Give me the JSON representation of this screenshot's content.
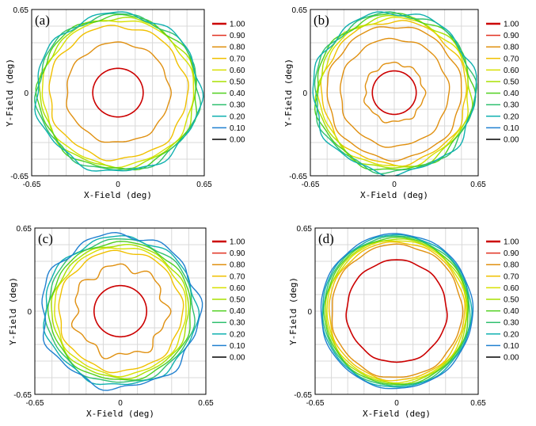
{
  "chart_data": [
    {
      "type": "contour",
      "panel_label": "(a)",
      "xlabel": "X-Field (deg)",
      "ylabel": "Y-Field (deg)",
      "xlim": [
        -0.65,
        0.65
      ],
      "ylim": [
        -0.65,
        0.65
      ],
      "x_ticks": [
        "-0.65",
        "0",
        "0.65"
      ],
      "y_ticks": [
        "0.65",
        "0",
        "-0.65"
      ],
      "grid": true,
      "legend": [
        "1.00",
        "0.90",
        "0.80",
        "0.70",
        "0.60",
        "0.50",
        "0.40",
        "0.30",
        "0.20",
        "0.10",
        "0.00"
      ],
      "contours": [
        {
          "level": "1.00",
          "radius": 0.19,
          "wobble": 0.0
        },
        {
          "level": "0.80",
          "radius": 0.39,
          "wobble": 0.008
        },
        {
          "level": "0.70",
          "radius": 0.52,
          "wobble": 0.012
        },
        {
          "level": "0.60",
          "radius": 0.57,
          "wobble": 0.01
        },
        {
          "level": "0.50",
          "radius": 0.585,
          "wobble": 0.012
        },
        {
          "level": "0.40",
          "radius": 0.6,
          "wobble": 0.014
        },
        {
          "level": "0.30",
          "radius": 0.61,
          "wobble": 0.015
        },
        {
          "level": "0.20",
          "radius": 0.62,
          "wobble": 0.016
        }
      ]
    },
    {
      "type": "contour",
      "panel_label": "(b)",
      "xlabel": "X-Field (deg)",
      "ylabel": "Y-Field (deg)",
      "xlim": [
        -0.65,
        0.65
      ],
      "ylim": [
        -0.65,
        0.65
      ],
      "x_ticks": [
        "-0.65",
        "0",
        "0.65"
      ],
      "y_ticks": [
        "0.65",
        "0",
        "-0.65"
      ],
      "grid": true,
      "legend": [
        "1.00",
        "0.90",
        "0.80",
        "0.70",
        "0.60",
        "0.50",
        "0.40",
        "0.30",
        "0.20",
        "0.10",
        "0.00"
      ],
      "contours": [
        {
          "level": "1.00",
          "radius": 0.17,
          "wobble": 0.0
        },
        {
          "level": "0.80",
          "radius": 0.23,
          "wobble": 0.01
        },
        {
          "level": "0.80",
          "radius": 0.42,
          "wobble": 0.008
        },
        {
          "level": "0.80",
          "radius": 0.52,
          "wobble": 0.01
        },
        {
          "level": "0.70",
          "radius": 0.56,
          "wobble": 0.012
        },
        {
          "level": "0.60",
          "radius": 0.58,
          "wobble": 0.012
        },
        {
          "level": "0.50",
          "radius": 0.595,
          "wobble": 0.014
        },
        {
          "level": "0.40",
          "radius": 0.61,
          "wobble": 0.015
        },
        {
          "level": "0.30",
          "radius": 0.62,
          "wobble": 0.016
        },
        {
          "level": "0.20",
          "radius": 0.63,
          "wobble": 0.017
        }
      ]
    },
    {
      "type": "contour",
      "panel_label": "(c)",
      "xlabel": "X-Field (deg)",
      "ylabel": "Y-Field (deg)",
      "xlim": [
        -0.65,
        0.65
      ],
      "ylim": [
        -0.65,
        0.65
      ],
      "x_ticks": [
        "-0.65",
        "0",
        "0.65"
      ],
      "y_ticks": [
        "0.65",
        "0",
        "-0.65"
      ],
      "grid": true,
      "legend": [
        "1.00",
        "0.90",
        "0.80",
        "0.70",
        "0.60",
        "0.50",
        "0.40",
        "0.30",
        "0.20",
        "0.10",
        "0.00"
      ],
      "contours": [
        {
          "level": "1.00",
          "radius": 0.2,
          "wobble": 0.0
        },
        {
          "level": "0.80",
          "radius": 0.35,
          "wobble": 0.025
        },
        {
          "level": "0.70",
          "radius": 0.47,
          "wobble": 0.01
        },
        {
          "level": "0.60",
          "radius": 0.5,
          "wobble": 0.008
        },
        {
          "level": "0.50",
          "radius": 0.52,
          "wobble": 0.008
        },
        {
          "level": "0.40",
          "radius": 0.54,
          "wobble": 0.008
        },
        {
          "level": "0.30",
          "radius": 0.56,
          "wobble": 0.01
        },
        {
          "level": "0.20",
          "radius": 0.58,
          "wobble": 0.014
        },
        {
          "level": "0.10",
          "radius": 0.6,
          "wobble": 0.02
        }
      ]
    },
    {
      "type": "contour",
      "panel_label": "(d)",
      "xlabel": "X-Field (deg)",
      "ylabel": "Y-Field (deg)",
      "xlim": [
        -0.65,
        0.65
      ],
      "ylim": [
        -0.65,
        0.65
      ],
      "x_ticks": [
        "-0.65",
        "0",
        "0.65"
      ],
      "y_ticks": [
        "0.65",
        "0",
        "-0.65"
      ],
      "grid": true,
      "legend": [
        "1.00",
        "0.90",
        "0.80",
        "0.70",
        "0.60",
        "0.50",
        "0.40",
        "0.30",
        "0.20",
        "0.10",
        "0.00"
      ],
      "contours": [
        {
          "level": "1.00",
          "radius": 0.4,
          "wobble": 0.004
        },
        {
          "level": "0.80",
          "radius": 0.52,
          "wobble": 0.006
        },
        {
          "level": "0.70",
          "radius": 0.54,
          "wobble": 0.005
        },
        {
          "level": "0.60",
          "radius": 0.555,
          "wobble": 0.004
        },
        {
          "level": "0.50",
          "radius": 0.565,
          "wobble": 0.004
        },
        {
          "level": "0.40",
          "radius": 0.575,
          "wobble": 0.004
        },
        {
          "level": "0.30",
          "radius": 0.585,
          "wobble": 0.004
        },
        {
          "level": "0.20",
          "radius": 0.595,
          "wobble": 0.004
        },
        {
          "level": "0.10",
          "radius": 0.605,
          "wobble": 0.004
        }
      ]
    }
  ],
  "level_colors": {
    "1.00": "#cc0000",
    "0.90": "#e03020",
    "0.80": "#e09010",
    "0.70": "#f0c000",
    "0.60": "#d8e000",
    "0.50": "#a8e000",
    "0.40": "#50d020",
    "0.30": "#30c070",
    "0.20": "#10b0b0",
    "0.10": "#2080d0",
    "0.00": "#000000"
  }
}
